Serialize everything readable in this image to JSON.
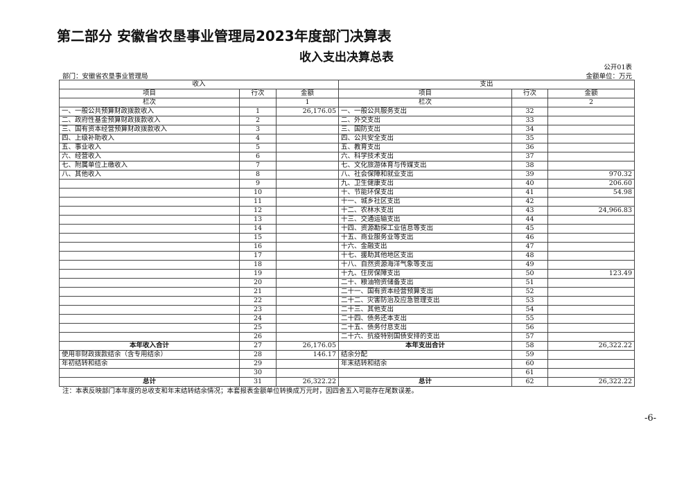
{
  "title": "第二部分  安徽省农垦事业管理局2023年度部门决算表",
  "subtitle": "收入支出决算总表",
  "form_no": "公开01表",
  "department": "部门：安徽省农垦事业管理局",
  "unit": "金额单位：万元",
  "headers": {
    "income": "收入",
    "expense": "支出",
    "item": "项目",
    "row_no": "行次",
    "amount": "金额",
    "col_label": "栏次",
    "col_income": "1",
    "col_expense": "2"
  },
  "income_rows": [
    {
      "item": "一、一般公共预算财政拨款收入",
      "no": "1",
      "amount": "26,176.05"
    },
    {
      "item": "二、政府性基金预算财政拨款收入",
      "no": "2",
      "amount": ""
    },
    {
      "item": "三、国有资本经营预算财政拨款收入",
      "no": "3",
      "amount": ""
    },
    {
      "item": "四、上级补助收入",
      "no": "4",
      "amount": ""
    },
    {
      "item": "五、事业收入",
      "no": "5",
      "amount": ""
    },
    {
      "item": "六、经营收入",
      "no": "6",
      "amount": ""
    },
    {
      "item": "七、附属单位上缴收入",
      "no": "7",
      "amount": ""
    },
    {
      "item": "八、其他收入",
      "no": "8",
      "amount": ""
    },
    {
      "item": "",
      "no": "9",
      "amount": ""
    },
    {
      "item": "",
      "no": "10",
      "amount": ""
    },
    {
      "item": "",
      "no": "11",
      "amount": ""
    },
    {
      "item": "",
      "no": "12",
      "amount": ""
    },
    {
      "item": "",
      "no": "13",
      "amount": ""
    },
    {
      "item": "",
      "no": "14",
      "amount": ""
    },
    {
      "item": "",
      "no": "15",
      "amount": ""
    },
    {
      "item": "",
      "no": "16",
      "amount": ""
    },
    {
      "item": "",
      "no": "17",
      "amount": ""
    },
    {
      "item": "",
      "no": "18",
      "amount": ""
    },
    {
      "item": "",
      "no": "19",
      "amount": ""
    },
    {
      "item": "",
      "no": "20",
      "amount": ""
    },
    {
      "item": "",
      "no": "21",
      "amount": ""
    },
    {
      "item": "",
      "no": "22",
      "amount": ""
    },
    {
      "item": "",
      "no": "23",
      "amount": ""
    },
    {
      "item": "",
      "no": "24",
      "amount": ""
    },
    {
      "item": "",
      "no": "25",
      "amount": ""
    },
    {
      "item": "",
      "no": "26",
      "amount": ""
    },
    {
      "item": "本年收入合计",
      "no": "27",
      "amount": "26,176.05",
      "bold": true
    },
    {
      "item": "使用非财政拨款结余（含专用结余）",
      "no": "28",
      "amount": "146.17"
    },
    {
      "item": "年初结转和结余",
      "no": "29",
      "amount": ""
    },
    {
      "item": "",
      "no": "30",
      "amount": ""
    },
    {
      "item": "总计",
      "no": "31",
      "amount": "26,322.22",
      "bold": true
    }
  ],
  "expense_rows": [
    {
      "item": "一、一般公共服务支出",
      "no": "32",
      "amount": ""
    },
    {
      "item": "二、外交支出",
      "no": "33",
      "amount": ""
    },
    {
      "item": "三、国防支出",
      "no": "34",
      "amount": ""
    },
    {
      "item": "四、公共安全支出",
      "no": "35",
      "amount": ""
    },
    {
      "item": "五、教育支出",
      "no": "36",
      "amount": ""
    },
    {
      "item": "六、科学技术支出",
      "no": "37",
      "amount": ""
    },
    {
      "item": "七、文化旅游体育与传媒支出",
      "no": "38",
      "amount": ""
    },
    {
      "item": "八、社会保障和就业支出",
      "no": "39",
      "amount": "970.32"
    },
    {
      "item": "九、卫生健康支出",
      "no": "40",
      "amount": "206.60"
    },
    {
      "item": "十、节能环保支出",
      "no": "41",
      "amount": "54.98"
    },
    {
      "item": "十一、城乡社区支出",
      "no": "42",
      "amount": ""
    },
    {
      "item": "十二、农林水支出",
      "no": "43",
      "amount": "24,966.83"
    },
    {
      "item": "十三、交通运输支出",
      "no": "44",
      "amount": ""
    },
    {
      "item": "十四、资源勘探工业信息等支出",
      "no": "45",
      "amount": ""
    },
    {
      "item": "十五、商业服务业等支出",
      "no": "46",
      "amount": ""
    },
    {
      "item": "十六、金融支出",
      "no": "47",
      "amount": ""
    },
    {
      "item": "十七、援助其他地区支出",
      "no": "48",
      "amount": ""
    },
    {
      "item": "十八、自然资源海洋气象等支出",
      "no": "49",
      "amount": ""
    },
    {
      "item": "十九、住房保障支出",
      "no": "50",
      "amount": "123.49"
    },
    {
      "item": "二十、粮油物资储备支出",
      "no": "51",
      "amount": ""
    },
    {
      "item": "二十一、国有资本经营预算支出",
      "no": "52",
      "amount": ""
    },
    {
      "item": "二十二、灾害防治及应急管理支出",
      "no": "53",
      "amount": ""
    },
    {
      "item": "二十三、其他支出",
      "no": "54",
      "amount": ""
    },
    {
      "item": "二十四、债务还本支出",
      "no": "55",
      "amount": ""
    },
    {
      "item": "二十五、债务付息支出",
      "no": "56",
      "amount": ""
    },
    {
      "item": "二十六、抗疫特别国债安排的支出",
      "no": "57",
      "amount": ""
    },
    {
      "item": "本年支出合计",
      "no": "58",
      "amount": "26,322.22",
      "bold": true
    },
    {
      "item": "结余分配",
      "no": "59",
      "amount": ""
    },
    {
      "item": "年末结转和结余",
      "no": "60",
      "amount": ""
    },
    {
      "item": "",
      "no": "61",
      "amount": ""
    },
    {
      "item": "总计",
      "no": "62",
      "amount": "26,322.22",
      "bold": true
    }
  ],
  "note": "注：本表反映部门本年度的总收支和年末结转结余情况；本套报表金额单位转换成万元时，因四舍五入可能存在尾数误差。",
  "page_number": "-6-"
}
